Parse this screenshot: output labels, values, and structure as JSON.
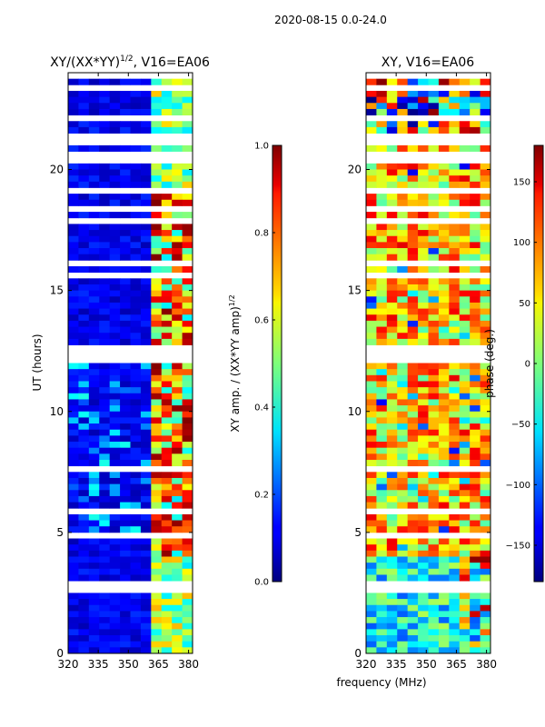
{
  "suptitle": "2020-08-15 0.0-24.0",
  "xlabel": "frequency (MHz)",
  "chart_data": [
    {
      "type": "heatmap",
      "title_main": "XY/(XX*YY)",
      "title_sup": "1/2",
      "title_rest": ", V16=EA06",
      "ylabel": "UT (hours)",
      "x_ticks": [
        "320",
        "335",
        "350",
        "365",
        "380"
      ],
      "x_tick_values": [
        320,
        335,
        350,
        365,
        380
      ],
      "xlim": [
        320,
        382
      ],
      "y_ticks": [
        "0",
        "5",
        "10",
        "15",
        "20"
      ],
      "y_tick_values": [
        0,
        5,
        10,
        15,
        20
      ],
      "ylim": [
        0,
        24
      ],
      "colorbar": {
        "label_main": "XY amp. / (XX*YY amp)",
        "label_sup": "1/2",
        "ticks": [
          "0.0",
          "0.2",
          "0.4",
          "0.6",
          "0.8",
          "1.0"
        ],
        "tick_values": [
          0,
          0.2,
          0.4,
          0.6,
          0.8,
          1.0
        ],
        "range": [
          0,
          1
        ],
        "colormap": "jet"
      }
    },
    {
      "type": "heatmap",
      "title_main": "XY, V16=EA06",
      "ylabel": "",
      "x_ticks": [
        "320",
        "335",
        "350",
        "365",
        "380"
      ],
      "x_tick_values": [
        320,
        335,
        350,
        365,
        380
      ],
      "xlim": [
        320,
        382
      ],
      "y_ticks": [
        "0",
        "5",
        "10",
        "15",
        "20"
      ],
      "y_tick_values": [
        0,
        5,
        10,
        15,
        20
      ],
      "ylim": [
        0,
        24
      ],
      "colorbar": {
        "label_main": "phase (deg.)",
        "ticks": [
          "−150",
          "−100",
          "−50",
          "0",
          "50",
          "100",
          "150"
        ],
        "tick_values": [
          -150,
          -100,
          -50,
          0,
          50,
          100,
          150
        ],
        "range": [
          -180,
          180
        ],
        "colormap": "jet"
      }
    }
  ]
}
